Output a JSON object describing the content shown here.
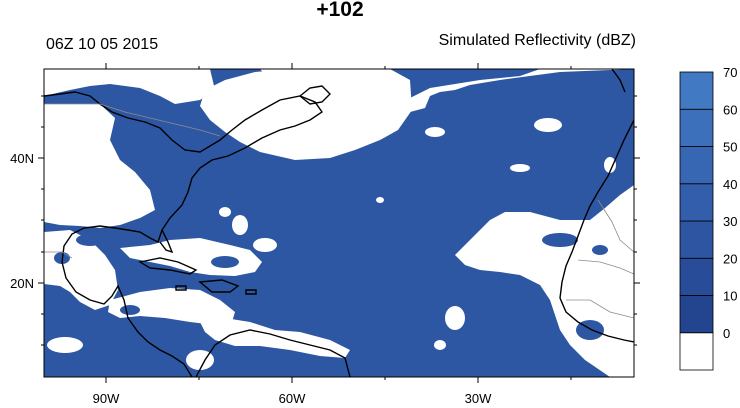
{
  "header": {
    "forecast_hour": "+102",
    "valid_time": "06Z 10 05 2015",
    "field_name": "Simulated Reflectivity (dBZ)"
  },
  "map": {
    "projection": "cylindrical equidistant",
    "lon_range": [
      -100,
      -5
    ],
    "lat_range": [
      5,
      50
    ],
    "x_tick_labels": [
      "90W",
      "60W",
      "30W"
    ],
    "y_tick_labels": [
      "40N",
      "20N"
    ],
    "colors": {
      "reflectivity_fill": "#2e57a3",
      "no_echo": "#ffffff",
      "coastline": "#000000",
      "borders": "#8c8c8c"
    }
  },
  "colorbar": {
    "levels": [
      "0",
      "10",
      "20",
      "30",
      "40",
      "50",
      "60",
      "70"
    ],
    "colors": [
      "#ffffff",
      "#23448e",
      "#284c98",
      "#2d55a2",
      "#325eab",
      "#3767b3",
      "#3c70bb",
      "#4179c2"
    ]
  }
}
